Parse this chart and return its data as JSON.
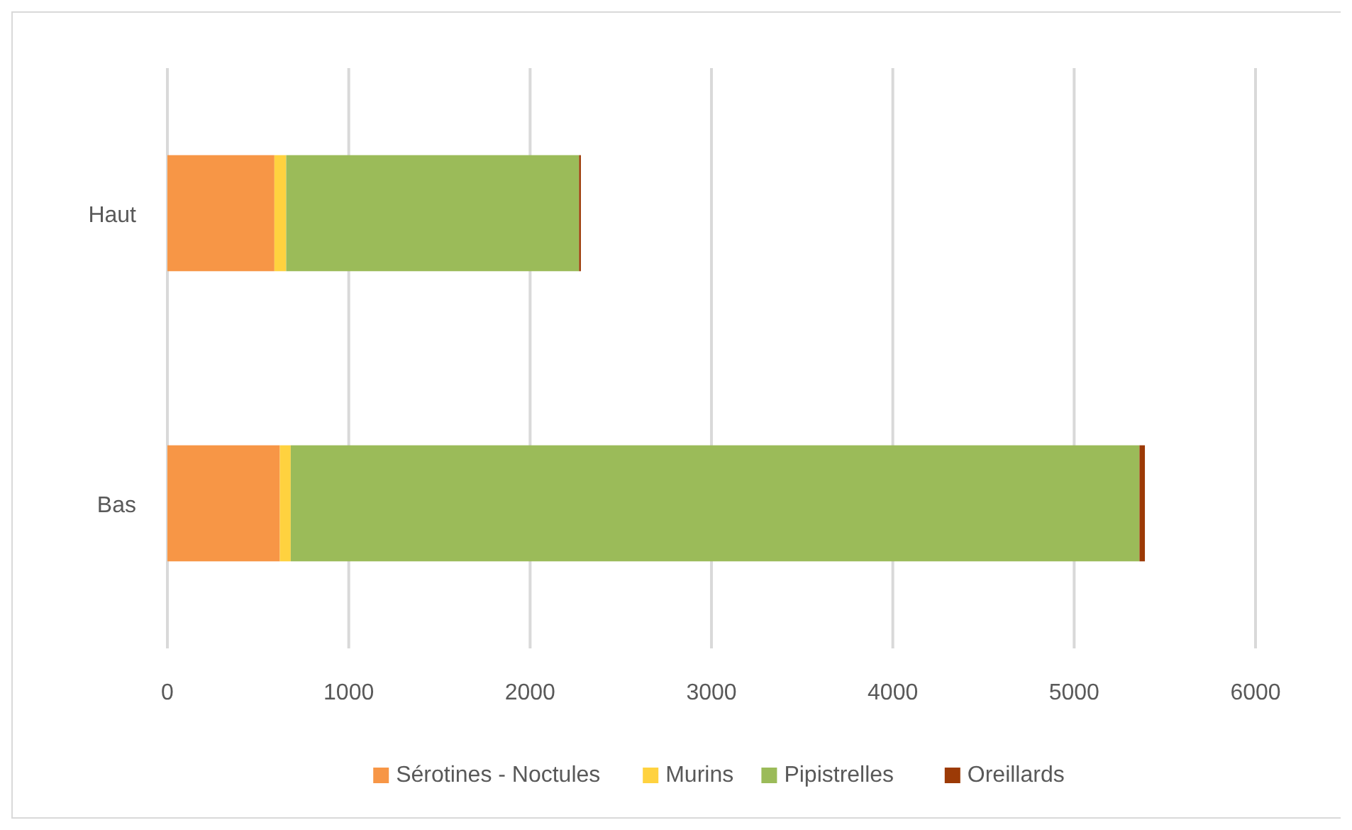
{
  "chart_data": {
    "type": "bar",
    "orientation": "horizontal",
    "stacked": true,
    "categories": [
      "Haut",
      "Bas"
    ],
    "series": [
      {
        "name": "Sérotines - Noctules",
        "color": "#f79646",
        "values": [
          590,
          620
        ]
      },
      {
        "name": "Murins",
        "color": "#ffd23f",
        "values": [
          65,
          60
        ]
      },
      {
        "name": "Pipistrelles",
        "color": "#9bbb59",
        "values": [
          1615,
          4680
        ]
      },
      {
        "name": "Oreillards",
        "color": "#9c3a06",
        "values": [
          10,
          30
        ]
      }
    ],
    "xlim": [
      0,
      6000
    ],
    "xticks": [
      0,
      1000,
      2000,
      3000,
      4000,
      5000,
      6000
    ],
    "grid": "x",
    "legend": "bottom"
  }
}
